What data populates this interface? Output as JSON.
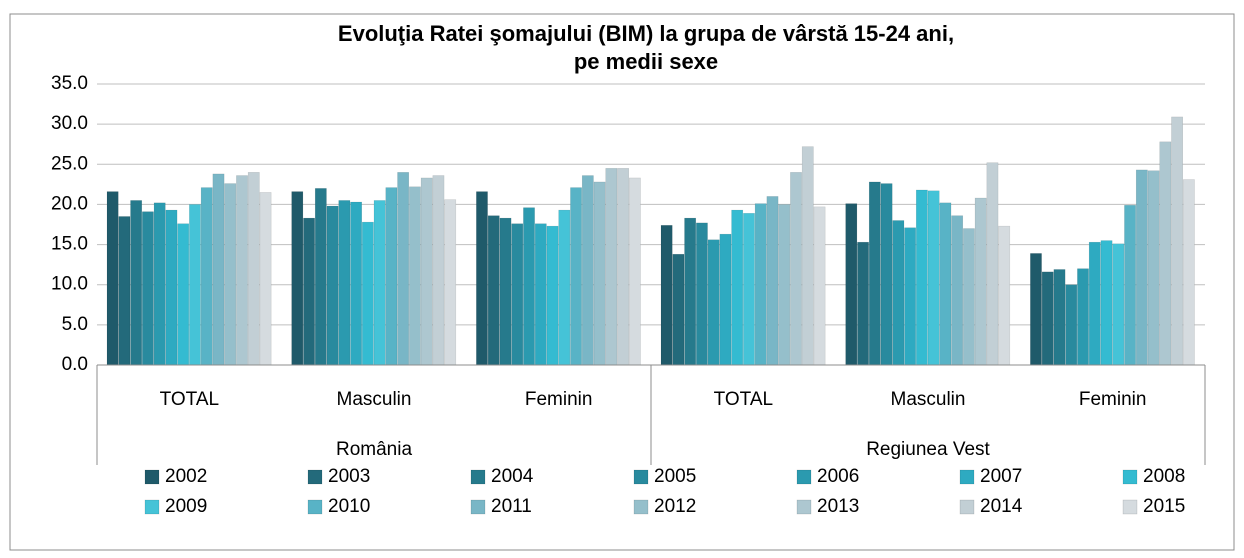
{
  "chart_data": {
    "type": "bar",
    "title": [
      "Evoluţia Ratei şomajului (BIM) la grupa de vârstă 15-24 ani,",
      "pe medii sexe"
    ],
    "categories": [
      "TOTAL",
      "Masculin",
      "Feminin",
      "TOTAL",
      "Masculin",
      "Feminin"
    ],
    "groups": [
      "România",
      "Regiunea Vest"
    ],
    "ylim": [
      0,
      35
    ],
    "yticks": [
      {
        "value": 0,
        "label": "0.0"
      },
      {
        "value": 5,
        "label": "5.0"
      },
      {
        "value": 10,
        "label": "10.0"
      },
      {
        "value": 15,
        "label": "15.0"
      },
      {
        "value": 20,
        "label": "20.0"
      },
      {
        "value": 25,
        "label": "25.0"
      },
      {
        "value": 30,
        "label": "30.0"
      },
      {
        "value": 35,
        "label": "35.0"
      }
    ],
    "grid": true,
    "legend": "bottom",
    "series": [
      {
        "name": "2002",
        "color": "#1f5a6a",
        "values": [
          21.6,
          21.6,
          21.6,
          17.4,
          20.1,
          13.9
        ]
      },
      {
        "name": "2003",
        "color": "#236a7b",
        "values": [
          18.5,
          18.3,
          18.6,
          13.8,
          15.3,
          11.6
        ]
      },
      {
        "name": "2004",
        "color": "#267a8c",
        "values": [
          20.5,
          22.0,
          18.3,
          18.3,
          22.8,
          11.9
        ]
      },
      {
        "name": "2005",
        "color": "#298a9e",
        "values": [
          19.1,
          19.8,
          17.6,
          17.7,
          22.6,
          10.0
        ]
      },
      {
        "name": "2006",
        "color": "#2b9aaf",
        "values": [
          20.2,
          20.5,
          19.6,
          15.6,
          18.0,
          12.0
        ]
      },
      {
        "name": "2007",
        "color": "#2eaac1",
        "values": [
          19.3,
          20.3,
          17.6,
          16.3,
          17.1,
          15.3
        ]
      },
      {
        "name": "2008",
        "color": "#34bbd1",
        "values": [
          17.6,
          17.8,
          17.3,
          19.3,
          21.8,
          15.5
        ]
      },
      {
        "name": "2009",
        "color": "#45c3d7",
        "values": [
          20.0,
          20.5,
          19.3,
          18.9,
          21.7,
          15.1
        ]
      },
      {
        "name": "2010",
        "color": "#58b3c6",
        "values": [
          22.1,
          22.1,
          22.1,
          20.1,
          20.2,
          19.9
        ]
      },
      {
        "name": "2011",
        "color": "#79b6c6",
        "values": [
          23.8,
          24.0,
          23.6,
          21.0,
          18.6,
          24.3
        ]
      },
      {
        "name": "2012",
        "color": "#95bfcb",
        "values": [
          22.6,
          22.2,
          22.8,
          20.0,
          17.0,
          24.2
        ]
      },
      {
        "name": "2013",
        "color": "#adc7d0",
        "values": [
          23.6,
          23.3,
          24.5,
          24.0,
          20.8,
          27.8
        ]
      },
      {
        "name": "2014",
        "color": "#c2cfd5",
        "values": [
          24.0,
          23.6,
          24.5,
          27.2,
          25.2,
          30.9
        ]
      },
      {
        "name": "2015",
        "color": "#d5dbdf",
        "values": [
          21.5,
          20.6,
          23.3,
          19.7,
          17.3,
          23.1
        ]
      }
    ]
  }
}
